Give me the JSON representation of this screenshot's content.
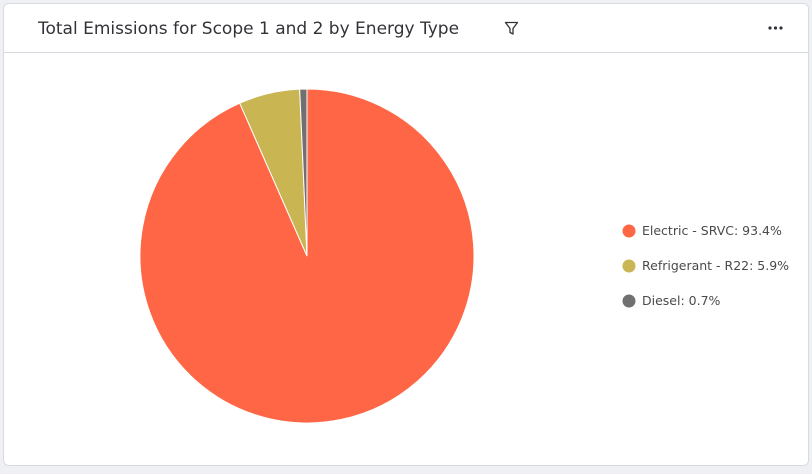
{
  "chart_data": {
    "type": "pie",
    "title": "Total Emissions for Scope 1 and 2 by Energy Type",
    "categories": [
      "Electric - SRVC: 93.4%",
      "Refrigerant - R22: 5.9%",
      "Diesel: 0.7%"
    ],
    "values": [
      93.4,
      5.9,
      0.7
    ],
    "colors": [
      "#ff6645",
      "#c9b552",
      "#707070"
    ],
    "legend": "right"
  }
}
